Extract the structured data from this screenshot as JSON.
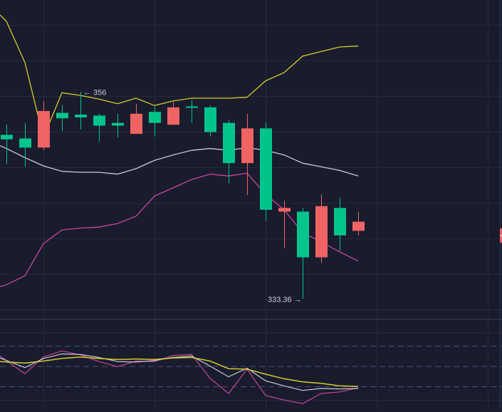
{
  "theme": {
    "background": "#191c2d",
    "grid": "#252a3b",
    "pane_separator": "#363c55",
    "right_border": "#2e3450",
    "up_color": "#00c48c",
    "down_color": "#ef6363",
    "upper_band_color": "#d4cc2c",
    "middle_band_color": "#c8cad6",
    "lower_band_color": "#c9449e",
    "annotation_color": "#c6cad8",
    "dashed_level_color": "#4a4f7a"
  },
  "annotations": {
    "high_label": "← 356",
    "low_label": "333.36 →"
  },
  "chart_data": [
    {
      "type": "candlestick",
      "title": "",
      "xlabel": "",
      "ylabel": "",
      "ylim": [
        329.5,
        366.0
      ],
      "grid": true,
      "legend": null,
      "annotations": [
        {
          "text": "← 356",
          "price": 356.0,
          "bar_index": 4,
          "kind": "highest-high"
        },
        {
          "text": "333.36 →",
          "price": 333.36,
          "bar_index": 16,
          "kind": "lowest-low"
        }
      ],
      "candles": [
        {
          "i": 0,
          "x": 9,
          "open": 350.8,
          "high": 352.4,
          "low": 348.1,
          "close": 351.3
        },
        {
          "i": 1,
          "x": 35,
          "open": 349.9,
          "high": 352.6,
          "low": 347.8,
          "close": 350.9
        },
        {
          "i": 2,
          "x": 61,
          "open": 353.9,
          "high": 355.0,
          "low": 349.6,
          "close": 349.9
        },
        {
          "i": 3,
          "x": 87,
          "open": 353.1,
          "high": 354.5,
          "low": 351.7,
          "close": 353.7
        },
        {
          "i": 4,
          "x": 113,
          "open": 353.2,
          "high": 356.0,
          "low": 351.9,
          "close": 353.5
        },
        {
          "i": 5,
          "x": 139,
          "open": 352.3,
          "high": 353.6,
          "low": 350.6,
          "close": 353.4
        },
        {
          "i": 6,
          "x": 165,
          "open": 352.3,
          "high": 353.6,
          "low": 351.0,
          "close": 352.6
        },
        {
          "i": 7,
          "x": 191,
          "open": 353.6,
          "high": 354.7,
          "low": 352.0,
          "close": 351.4
        },
        {
          "i": 8,
          "x": 217,
          "open": 352.6,
          "high": 354.4,
          "low": 351.1,
          "close": 353.8
        },
        {
          "i": 9,
          "x": 243,
          "open": 354.3,
          "high": 354.9,
          "low": 352.4,
          "close": 352.4
        },
        {
          "i": 10,
          "x": 269,
          "open": 354.3,
          "high": 355.1,
          "low": 352.6,
          "close": 354.4
        },
        {
          "i": 11,
          "x": 295,
          "open": 351.6,
          "high": 354.5,
          "low": 351.1,
          "close": 354.3
        },
        {
          "i": 12,
          "x": 321,
          "open": 348.2,
          "high": 352.9,
          "low": 346.0,
          "close": 352.6
        },
        {
          "i": 13,
          "x": 347,
          "open": 352.0,
          "high": 353.6,
          "low": 344.7,
          "close": 348.2
        },
        {
          "i": 14,
          "x": 373,
          "open": 343.1,
          "high": 352.6,
          "low": 341.9,
          "close": 352.0
        },
        {
          "i": 15,
          "x": 399,
          "open": 343.3,
          "high": 344.1,
          "low": 338.9,
          "close": 342.9
        },
        {
          "i": 16,
          "x": 425,
          "open": 337.9,
          "high": 343.3,
          "low": 333.36,
          "close": 342.9
        },
        {
          "i": 17,
          "x": 451,
          "open": 343.5,
          "high": 344.8,
          "low": 337.3,
          "close": 337.9
        },
        {
          "i": 18,
          "x": 477,
          "open": 340.3,
          "high": 344.4,
          "low": 338.6,
          "close": 343.3
        },
        {
          "i": 19,
          "x": 503,
          "open": 341.8,
          "high": 342.9,
          "low": 340.3,
          "close": 340.8
        }
      ],
      "series": [
        {
          "name": "Upper Band",
          "color": "#d4cc2c",
          "points": [
            [
              0,
              364.4
            ],
            [
              9,
              363.7
            ],
            [
              35,
              359.2
            ],
            [
              61,
              351.0
            ],
            [
              87,
              355.9
            ],
            [
              113,
              355.6
            ],
            [
              139,
              355.2
            ],
            [
              165,
              354.7
            ],
            [
              191,
              355.3
            ],
            [
              217,
              354.5
            ],
            [
              243,
              355.0
            ],
            [
              269,
              355.3
            ],
            [
              295,
              355.3
            ],
            [
              321,
              355.3
            ],
            [
              347,
              355.4
            ],
            [
              373,
              357.2
            ],
            [
              399,
              358.1
            ],
            [
              425,
              359.9
            ],
            [
              451,
              360.4
            ],
            [
              477,
              360.9
            ],
            [
              503,
              361.0
            ]
          ]
        },
        {
          "name": "Middle Band (SMA)",
          "color": "#c8cad6",
          "points": [
            [
              0,
              350.1
            ],
            [
              9,
              349.8
            ],
            [
              35,
              348.8
            ],
            [
              61,
              347.9
            ],
            [
              87,
              347.3
            ],
            [
              113,
              347.2
            ],
            [
              139,
              347.2
            ],
            [
              165,
              347.0
            ],
            [
              191,
              347.6
            ],
            [
              217,
              348.5
            ],
            [
              243,
              349.1
            ],
            [
              269,
              349.6
            ],
            [
              295,
              349.8
            ],
            [
              321,
              349.6
            ],
            [
              347,
              349.9
            ],
            [
              373,
              349.6
            ],
            [
              399,
              349.1
            ],
            [
              425,
              348.2
            ],
            [
              451,
              347.8
            ],
            [
              477,
              347.4
            ],
            [
              503,
              346.8
            ]
          ]
        },
        {
          "name": "Lower Band",
          "color": "#c9449e",
          "points": [
            [
              0,
              334.7
            ],
            [
              9,
              334.9
            ],
            [
              35,
              335.9
            ],
            [
              61,
              339.4
            ],
            [
              87,
              340.9
            ],
            [
              113,
              341.1
            ],
            [
              139,
              341.2
            ],
            [
              165,
              341.6
            ],
            [
              191,
              342.4
            ],
            [
              217,
              344.6
            ],
            [
              243,
              345.5
            ],
            [
              269,
              346.4
            ],
            [
              295,
              347.0
            ],
            [
              321,
              346.8
            ],
            [
              347,
              347.1
            ],
            [
              373,
              344.8
            ],
            [
              399,
              343.1
            ],
            [
              425,
              340.6
            ],
            [
              451,
              339.6
            ],
            [
              477,
              338.5
            ],
            [
              503,
              337.5
            ]
          ]
        }
      ]
    },
    {
      "type": "line",
      "title": "",
      "xlabel": "",
      "ylabel": "",
      "ylim": [
        0,
        100
      ],
      "grid": true,
      "legend": null,
      "levels": [
        70,
        50,
        30
      ],
      "series": [
        {
          "name": "Oscillator (fast)",
          "color": "#c9449e",
          "points": [
            [
              0,
              60.0
            ],
            [
              35,
              42.5
            ],
            [
              61,
              59.0
            ],
            [
              87,
              65.0
            ],
            [
              113,
              61.0
            ],
            [
              139,
              54.5
            ],
            [
              165,
              49.5
            ],
            [
              191,
              55.0
            ],
            [
              217,
              54.5
            ],
            [
              243,
              60.5
            ],
            [
              269,
              61.5
            ],
            [
              295,
              38.0
            ],
            [
              321,
              23.0
            ],
            [
              347,
              47.0
            ],
            [
              373,
              21.0
            ],
            [
              399,
              16.5
            ],
            [
              425,
              13.0
            ],
            [
              451,
              23.0
            ],
            [
              477,
              24.5
            ],
            [
              503,
              28.5
            ]
          ]
        },
        {
          "name": "Oscillator (signal)",
          "color": "#c8cad6",
          "points": [
            [
              0,
              58.0
            ],
            [
              35,
              48.5
            ],
            [
              61,
              57.5
            ],
            [
              87,
              62.0
            ],
            [
              113,
              61.5
            ],
            [
              139,
              58.5
            ],
            [
              165,
              54.5
            ],
            [
              191,
              54.0
            ],
            [
              217,
              55.5
            ],
            [
              243,
              58.5
            ],
            [
              269,
              60.0
            ],
            [
              295,
              50.0
            ],
            [
              321,
              39.5
            ],
            [
              347,
              48.0
            ],
            [
              373,
              35.5
            ],
            [
              399,
              30.5
            ],
            [
              425,
              26.0
            ],
            [
              451,
              28.0
            ],
            [
              477,
              27.5
            ],
            [
              503,
              28.0
            ]
          ]
        },
        {
          "name": "Oscillator (slow)",
          "color": "#d4cc2c",
          "points": [
            [
              0,
              54.5
            ],
            [
              35,
              53.0
            ],
            [
              61,
              55.0
            ],
            [
              87,
              57.5
            ],
            [
              113,
              59.0
            ],
            [
              139,
              57.5
            ],
            [
              165,
              56.5
            ],
            [
              191,
              57.0
            ],
            [
              217,
              56.5
            ],
            [
              243,
              58.0
            ],
            [
              269,
              58.5
            ],
            [
              295,
              55.0
            ],
            [
              321,
              47.5
            ],
            [
              347,
              47.0
            ],
            [
              373,
              42.0
            ],
            [
              399,
              37.5
            ],
            [
              425,
              34.5
            ],
            [
              451,
              33.0
            ],
            [
              477,
              30.5
            ],
            [
              503,
              30.0
            ]
          ]
        }
      ]
    }
  ]
}
